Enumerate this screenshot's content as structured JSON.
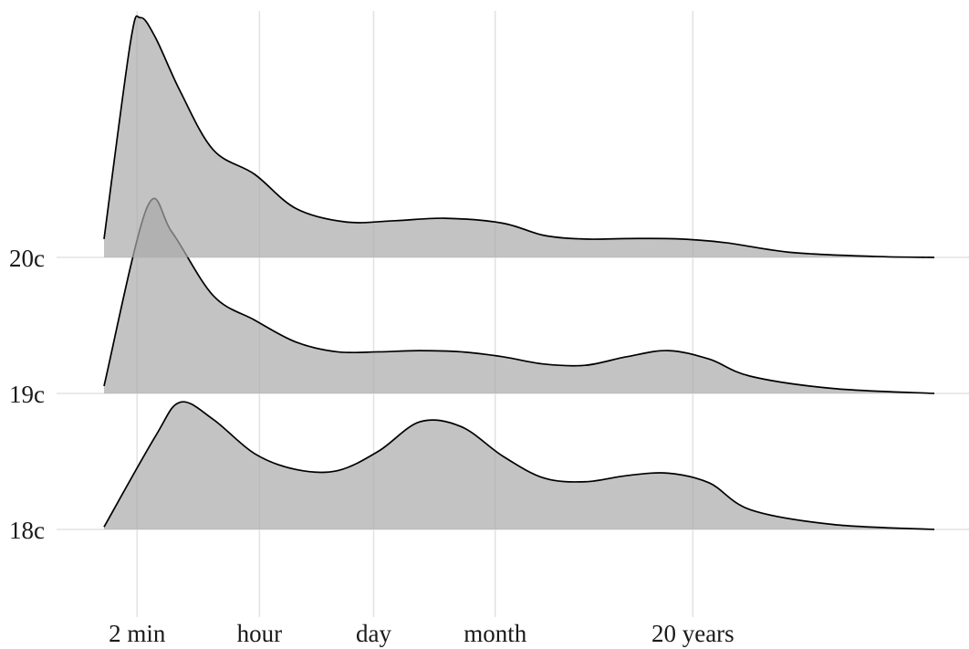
{
  "chart_data": {
    "type": "ridgeline",
    "title": "",
    "xlabel": "",
    "ylabel": "",
    "x_scale": "log-time",
    "x_tick_labels": [
      "2 min",
      "hour",
      "day",
      "month",
      "20 years"
    ],
    "x_tick_values_log10_seconds": [
      2.08,
      3.56,
      4.94,
      6.41,
      8.8
    ],
    "x_range_log10_seconds": [
      1.68,
      11.72
    ],
    "grid": true,
    "fill_color": "#a9a9a9",
    "line_color": "#000000",
    "rows": [
      {
        "label": "20c",
        "density": [
          [
            1.68,
            0.075
          ],
          [
            2.0,
            0.88
          ],
          [
            2.12,
            0.98
          ],
          [
            2.3,
            0.9
          ],
          [
            2.6,
            0.68
          ],
          [
            3.0,
            0.44
          ],
          [
            3.5,
            0.34
          ],
          [
            4.0,
            0.2
          ],
          [
            4.6,
            0.145
          ],
          [
            5.2,
            0.15
          ],
          [
            5.8,
            0.16
          ],
          [
            6.5,
            0.14
          ],
          [
            7.0,
            0.09
          ],
          [
            7.5,
            0.075
          ],
          [
            8.0,
            0.077
          ],
          [
            8.6,
            0.076
          ],
          [
            9.2,
            0.06
          ],
          [
            10.0,
            0.02
          ],
          [
            11.0,
            0.004
          ],
          [
            11.72,
            0.0
          ]
        ]
      },
      {
        "label": "19c",
        "density": [
          [
            1.68,
            0.03
          ],
          [
            2.2,
            0.76
          ],
          [
            2.5,
            0.66
          ],
          [
            3.0,
            0.4
          ],
          [
            3.5,
            0.3
          ],
          [
            4.0,
            0.21
          ],
          [
            4.5,
            0.17
          ],
          [
            5.0,
            0.17
          ],
          [
            5.5,
            0.175
          ],
          [
            6.0,
            0.17
          ],
          [
            6.5,
            0.15
          ],
          [
            7.0,
            0.12
          ],
          [
            7.5,
            0.115
          ],
          [
            8.0,
            0.15
          ],
          [
            8.5,
            0.175
          ],
          [
            9.0,
            0.14
          ],
          [
            9.5,
            0.07
          ],
          [
            10.5,
            0.02
          ],
          [
            11.72,
            0.0
          ]
        ]
      },
      {
        "label": "18c",
        "density": [
          [
            1.68,
            0.01
          ],
          [
            2.3,
            0.38
          ],
          [
            2.6,
            0.52
          ],
          [
            3.0,
            0.45
          ],
          [
            3.5,
            0.31
          ],
          [
            4.0,
            0.245
          ],
          [
            4.5,
            0.24
          ],
          [
            5.0,
            0.32
          ],
          [
            5.5,
            0.44
          ],
          [
            6.0,
            0.42
          ],
          [
            6.5,
            0.3
          ],
          [
            7.0,
            0.21
          ],
          [
            7.5,
            0.195
          ],
          [
            8.0,
            0.22
          ],
          [
            8.5,
            0.23
          ],
          [
            9.0,
            0.19
          ],
          [
            9.5,
            0.08
          ],
          [
            10.5,
            0.02
          ],
          [
            11.72,
            0.0
          ]
        ]
      }
    ]
  }
}
